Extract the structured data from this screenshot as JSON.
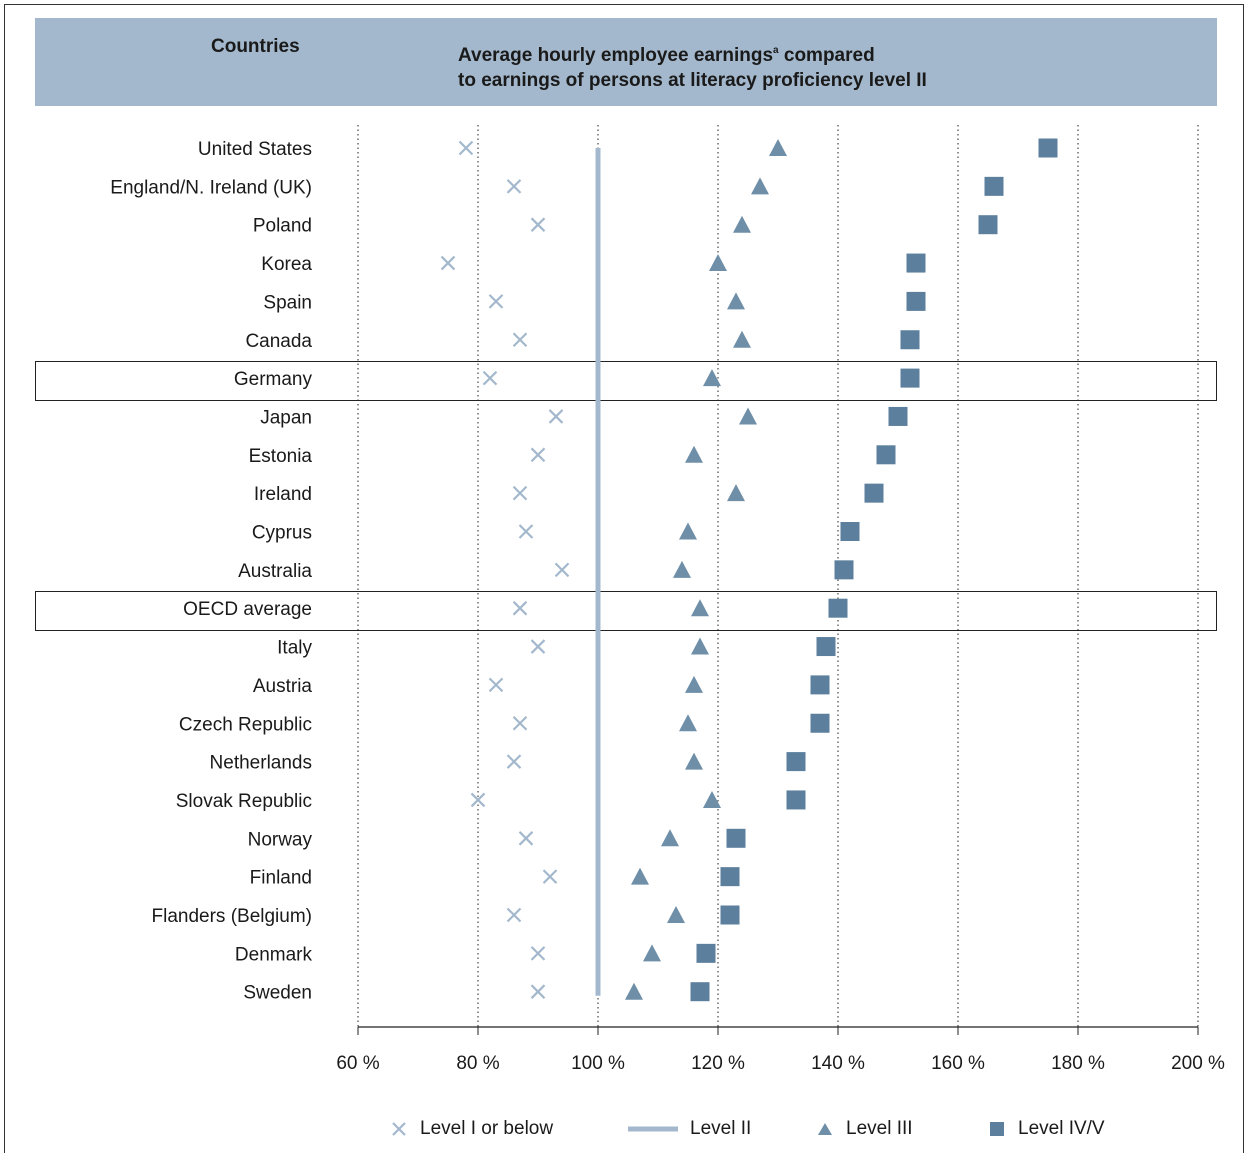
{
  "header": {
    "col1": "Countries",
    "title_line1": "Average hourly employee earnings",
    "title_sup": "a",
    "title_line1_rest": " compared",
    "title_line2": "to earnings of persons at literacy proficiency level II"
  },
  "colors": {
    "header_bg": "#a3b8cc",
    "level1": "#a3b8cc",
    "level2": "#a3b8cc",
    "level3": "#6f8fa8",
    "level45": "#5b7f9c"
  },
  "legend": {
    "level1": "Level I or below",
    "level2": "Level II",
    "level3": "Level III",
    "level45": "Level IV/V"
  },
  "chart_data": {
    "type": "scatter",
    "xlim": [
      60,
      200
    ],
    "x_ticks": [
      "60 %",
      "80 %",
      "100 %",
      "120 %",
      "140 %",
      "160 %",
      "180 %",
      "200 %"
    ],
    "grid": "vertical dotted",
    "reference_line": 100,
    "highlighted": [
      "Germany",
      "OECD average"
    ],
    "categories": [
      "United States",
      "England/N. Ireland (UK)",
      "Poland",
      "Korea",
      "Spain",
      "Canada",
      "Germany",
      "Japan",
      "Estonia",
      "Ireland",
      "Cyprus",
      "Australia",
      "OECD average",
      "Italy",
      "Austria",
      "Czech Republic",
      "Netherlands",
      "Slovak Republic",
      "Norway",
      "Finland",
      "Flanders (Belgium)",
      "Denmark",
      "Sweden"
    ],
    "series": [
      {
        "name": "Level I or below",
        "marker": "x",
        "values": [
          78,
          86,
          90,
          75,
          83,
          87,
          82,
          93,
          90,
          87,
          88,
          94,
          87,
          90,
          83,
          87,
          86,
          80,
          88,
          92,
          86,
          90,
          90
        ]
      },
      {
        "name": "Level III",
        "marker": "triangle",
        "values": [
          130,
          127,
          124,
          120,
          123,
          124,
          119,
          125,
          116,
          123,
          115,
          114,
          117,
          117,
          116,
          115,
          116,
          119,
          112,
          107,
          113,
          109,
          106
        ]
      },
      {
        "name": "Level IV/V",
        "marker": "square",
        "values": [
          175,
          166,
          165,
          153,
          153,
          152,
          152,
          150,
          148,
          146,
          142,
          141,
          140,
          138,
          137,
          137,
          133,
          133,
          123,
          122,
          122,
          118,
          117
        ]
      }
    ]
  }
}
